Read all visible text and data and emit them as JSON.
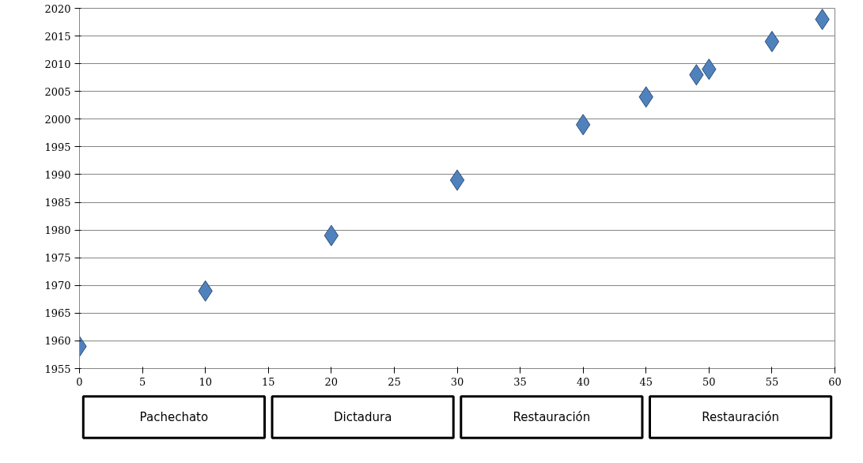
{
  "chart_data": {
    "type": "scatter",
    "x": [
      0,
      10,
      20,
      30,
      40,
      45,
      49,
      50,
      55,
      59
    ],
    "values": [
      1959,
      1969,
      1979,
      1989,
      1999,
      2004,
      2008,
      2009,
      2014,
      2018
    ],
    "color": "#4f81bd",
    "marker": "diamond",
    "xlim": [
      0,
      60
    ],
    "xticks": [
      0,
      5,
      10,
      15,
      20,
      25,
      30,
      35,
      40,
      45,
      50,
      55,
      60
    ],
    "ylim": [
      1955,
      2020
    ],
    "yticks": [
      1955,
      1960,
      1965,
      1970,
      1975,
      1980,
      1985,
      1990,
      1995,
      2000,
      2005,
      2010,
      2015,
      2020
    ],
    "grid": "y",
    "annotations": [
      "Pachechato",
      "Dictadura",
      "Restauración",
      "Restauración"
    ]
  }
}
